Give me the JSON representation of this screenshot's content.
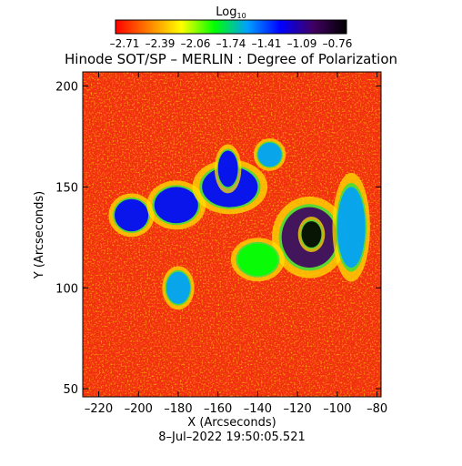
{
  "chart_data": {
    "type": "heatmap",
    "title": "Hinode SOT/SP – MERLIN : Degree of Polarization",
    "colorbar": {
      "label_base": "Log",
      "label_sub": "10",
      "tick_labels": [
        "–2.71",
        "–2.39",
        "–2.06",
        "–1.74",
        "–1.41",
        "–1.09",
        "–0.76"
      ],
      "range": [
        -2.71,
        -0.76
      ],
      "colors": [
        "#ff0000",
        "#ff7f00",
        "#ffff00",
        "#00ff00",
        "#00a0ff",
        "#0000ff",
        "#400060",
        "#000000"
      ]
    },
    "xlabel": "X (Arcseconds)",
    "ylabel": "Y (Arcseconds)",
    "x_ticks": [
      "–220",
      "–200",
      "–180",
      "–160",
      "–140",
      "–120",
      "–100",
      "–80"
    ],
    "y_ticks": [
      "50",
      "100",
      "150",
      "200"
    ],
    "xlim": [
      -228,
      -78
    ],
    "ylim": [
      46,
      207
    ],
    "grid": false,
    "timestamp": "8–Jul–2022 19:50:05.521",
    "regions": [
      {
        "x": [
          -212,
          -195
        ],
        "y": [
          128,
          144
        ],
        "value": -1.3
      },
      {
        "x": [
          -192,
          -170
        ],
        "y": [
          132,
          150
        ],
        "value": -1.2
      },
      {
        "x": [
          -168,
          -140
        ],
        "y": [
          140,
          160
        ],
        "value": -1.3
      },
      {
        "x": [
          -160,
          -150
        ],
        "y": [
          150,
          168
        ],
        "value": -1.4
      },
      {
        "x": [
          -140,
          -128
        ],
        "y": [
          160,
          172
        ],
        "value": -1.6
      },
      {
        "x": [
          -128,
          -100
        ],
        "y": [
          110,
          140
        ],
        "value": -1.1
      },
      {
        "x": [
          -118,
          -108
        ],
        "y": [
          120,
          133
        ],
        "value": -0.8
      },
      {
        "x": [
          -100,
          -86
        ],
        "y": [
          110,
          150
        ],
        "value": -1.6
      },
      {
        "x": [
          -186,
          -174
        ],
        "y": [
          92,
          108
        ],
        "value": -1.6
      },
      {
        "x": [
          -150,
          -130
        ],
        "y": [
          106,
          122
        ],
        "value": -1.8
      }
    ]
  }
}
